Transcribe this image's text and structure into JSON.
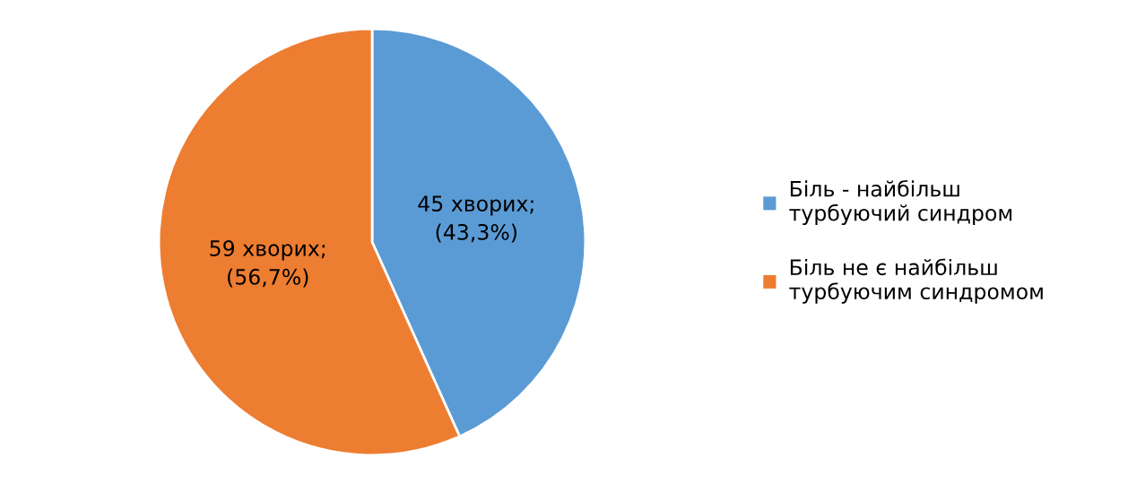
{
  "chart_data": {
    "type": "pie",
    "categories": [
      "Біль - найбільш турбуючий синдром",
      "Біль не є найбільш турбуючим синдромом"
    ],
    "values": [
      45,
      59
    ],
    "colors": [
      "#5b9bd5",
      "#ed7d31"
    ],
    "value_labels": [
      "45 хворих;\n(43,3%)",
      "59 хворих;\n(56,7%)"
    ],
    "legend": "right"
  }
}
